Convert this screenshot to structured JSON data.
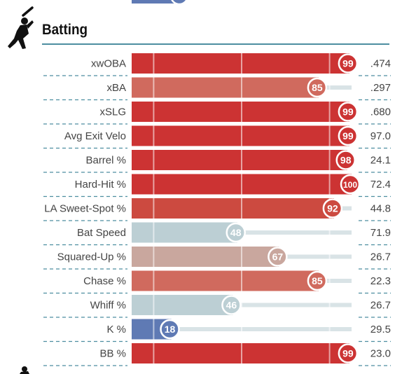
{
  "section": {
    "title": "Batting",
    "icon": "batter-silhouette-icon"
  },
  "colors": {
    "track": "#d9e3e6",
    "rule": "#4d8ea0",
    "text": "#444444",
    "scale": [
      "#3a5fa8",
      "#b9cfd6",
      "#c9a79e",
      "#c8312f"
    ]
  },
  "chart_data": {
    "type": "bar",
    "orientation": "horizontal",
    "xlim": [
      0,
      100
    ],
    "categories": [
      "xwOBA",
      "xBA",
      "xSLG",
      "Avg Exit Velo",
      "Barrel %",
      "Hard-Hit %",
      "LA Sweet-Spot %",
      "Bat Speed",
      "Squared-Up %",
      "Chase %",
      "Whiff %",
      "K %",
      "BB %"
    ],
    "series": [
      {
        "values": [
          99,
          85,
          99,
          99,
          98,
          100,
          92,
          48,
          67,
          85,
          46,
          18,
          99
        ],
        "colors": [
          "#cc3333",
          "#d06a5e",
          "#cc3333",
          "#cc3333",
          "#cc3333",
          "#cc3333",
          "#cc4a40",
          "#bccfd4",
          "#c9a79e",
          "#d06a5e",
          "#bccfd4",
          "#5f7ab4",
          "#cc3333"
        ]
      }
    ],
    "raw_values": [
      ".474",
      ".297",
      ".680",
      "97.0",
      "24.1",
      "72.4",
      "44.8",
      "71.9",
      "26.7",
      "22.3",
      "26.7",
      "29.5",
      "23.0"
    ]
  }
}
